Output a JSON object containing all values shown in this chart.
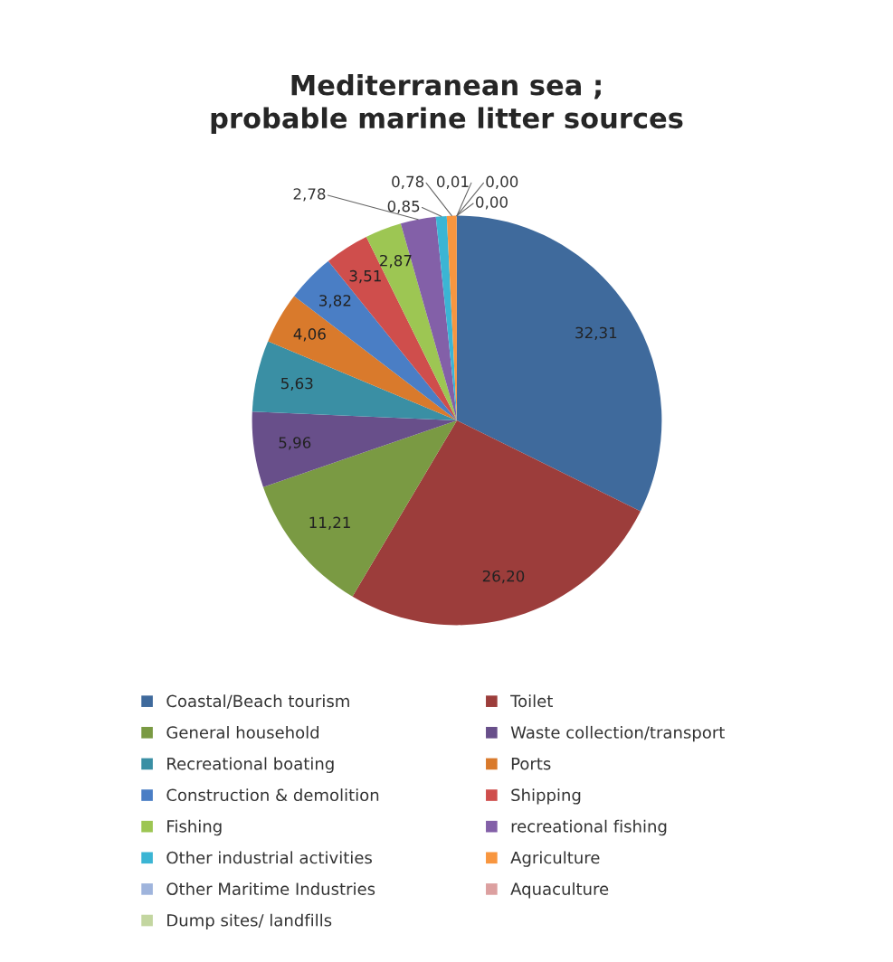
{
  "chart_data": {
    "type": "pie",
    "title": "Mediterranean sea ;\nprobable marine litter sources",
    "categories": [
      "Coastal/Beach tourism",
      "Toilet",
      "General household",
      "Waste collection/transport",
      "Recreational boating",
      "Ports",
      "Construction & demolition",
      "Shipping",
      "Fishing",
      "recreational fishing",
      "Other industrial activities",
      "Agriculture",
      "Other Maritime Industries",
      "Aquaculture",
      "Dump sites/ landfills"
    ],
    "values": [
      32.31,
      26.2,
      11.21,
      5.96,
      5.63,
      4.06,
      3.82,
      3.51,
      2.87,
      2.78,
      0.85,
      0.78,
      0.01,
      0.0,
      0.0
    ],
    "value_labels": [
      "32,31",
      "26,20",
      "11,21",
      "5,96",
      "5,63",
      "4,06",
      "3,82",
      "3,51",
      "2,87",
      "2,78",
      "0,85",
      "0,78",
      "0,01",
      "0,00",
      "0,00"
    ],
    "colors": [
      "#3f6a9c",
      "#9c3d3b",
      "#7a9a43",
      "#684f8a",
      "#3a8fa4",
      "#d97a2c",
      "#4a7ec5",
      "#cf4e4c",
      "#9dc653",
      "#8360a8",
      "#3bb5d4",
      "#f8963f",
      "#9fb4dc",
      "#dca0a0",
      "#c3d6a0"
    ],
    "legend": "bottom"
  }
}
